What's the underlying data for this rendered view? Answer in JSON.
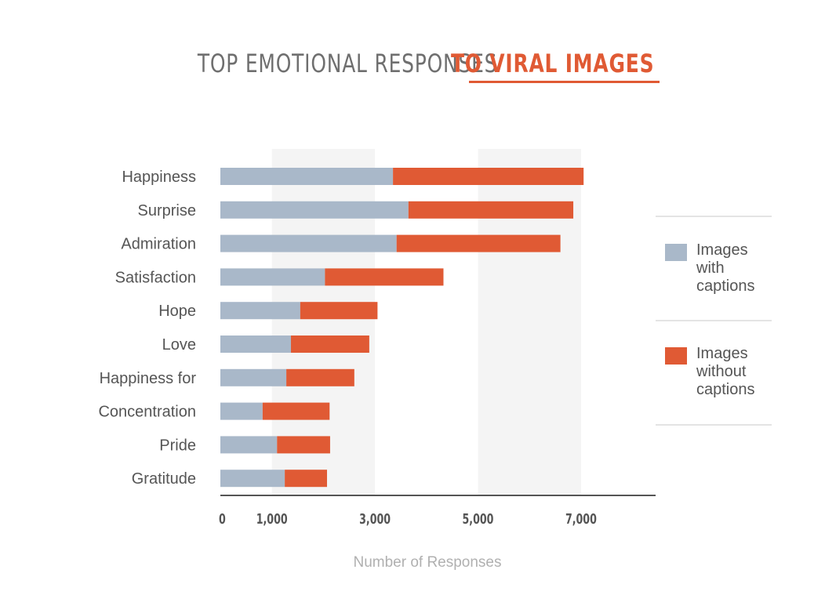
{
  "title": {
    "part1": "TOP EMOTIONAL RESPONSES",
    "part2": "TO VIRAL IMAGES"
  },
  "colors": {
    "with_captions": "#a9b8c9",
    "without_captions": "#e05a34",
    "band": "#f4f4f4",
    "axis": "#555555"
  },
  "legend": {
    "with_captions": "Images with captions",
    "without_captions": "Images without captions"
  },
  "chart_data": {
    "type": "bar",
    "orientation": "horizontal",
    "stacked": true,
    "title": "TOP EMOTIONAL RESPONSES TO VIRAL IMAGES",
    "xlabel": "Number of Responses",
    "ylabel": "",
    "categories": [
      "Happiness",
      "Surprise",
      "Admiration",
      "Satisfaction",
      "Hope",
      "Love",
      "Happiness for",
      "Concentration",
      "Pride",
      "Gratitude"
    ],
    "series": [
      {
        "name": "Images with captions",
        "values": [
          3350,
          3650,
          3420,
          2030,
          1550,
          1370,
          1280,
          820,
          1100,
          1250
        ]
      },
      {
        "name": "Images without captions",
        "values": [
          3700,
          3200,
          3180,
          2300,
          1500,
          1520,
          1320,
          1300,
          1030,
          820
        ]
      }
    ],
    "xticks": [
      "0",
      "1,000",
      "3,000",
      "5,000",
      "7,000"
    ],
    "xtick_values": [
      0,
      1000,
      3000,
      5000,
      7000
    ],
    "xlim": [
      0,
      8450
    ],
    "legend_position": "right"
  }
}
